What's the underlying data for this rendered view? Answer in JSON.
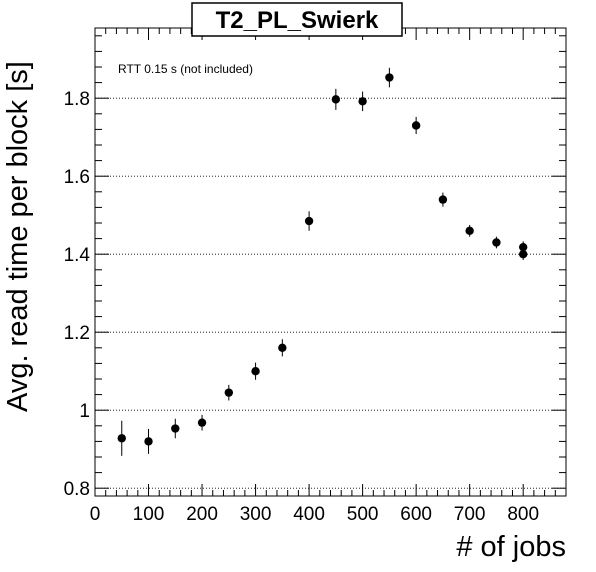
{
  "chart_data": {
    "type": "scatter",
    "title": "T2_PL_Swierk",
    "annotation": "RTT 0.15 s (not included)",
    "xlabel": "# of jobs",
    "ylabel": "Avg. read time per block [s]",
    "xlim": [
      0,
      880
    ],
    "ylim": [
      0.78,
      1.98
    ],
    "xticks": [
      0,
      100,
      200,
      300,
      400,
      500,
      600,
      700,
      800
    ],
    "xtick_labels": [
      "0",
      "100",
      "200",
      "300",
      "400",
      "500",
      "600",
      "700",
      "800"
    ],
    "yticks": [
      0.8,
      1.0,
      1.2,
      1.4,
      1.6,
      1.8
    ],
    "ytick_labels": [
      "0.8",
      "1",
      "1.2",
      "1.4",
      "1.6",
      "1.8"
    ],
    "grid": "horizontal dotted at major y ticks",
    "marker": "filled circle with vertical error bars",
    "points": [
      {
        "x": 50,
        "y": 0.928,
        "err": 0.045
      },
      {
        "x": 100,
        "y": 0.92,
        "err": 0.032
      },
      {
        "x": 150,
        "y": 0.953,
        "err": 0.025
      },
      {
        "x": 200,
        "y": 0.968,
        "err": 0.02
      },
      {
        "x": 250,
        "y": 1.045,
        "err": 0.02
      },
      {
        "x": 300,
        "y": 1.1,
        "err": 0.022
      },
      {
        "x": 350,
        "y": 1.16,
        "err": 0.022
      },
      {
        "x": 400,
        "y": 1.485,
        "err": 0.025
      },
      {
        "x": 450,
        "y": 1.797,
        "err": 0.027
      },
      {
        "x": 500,
        "y": 1.792,
        "err": 0.025
      },
      {
        "x": 550,
        "y": 1.853,
        "err": 0.025
      },
      {
        "x": 600,
        "y": 1.73,
        "err": 0.022
      },
      {
        "x": 650,
        "y": 1.54,
        "err": 0.018
      },
      {
        "x": 700,
        "y": 1.46,
        "err": 0.015
      },
      {
        "x": 750,
        "y": 1.43,
        "err": 0.015
      },
      {
        "x": 800,
        "y": 1.418,
        "err": 0.015
      },
      {
        "x": 800,
        "y": 1.4,
        "err": 0.015
      }
    ]
  }
}
